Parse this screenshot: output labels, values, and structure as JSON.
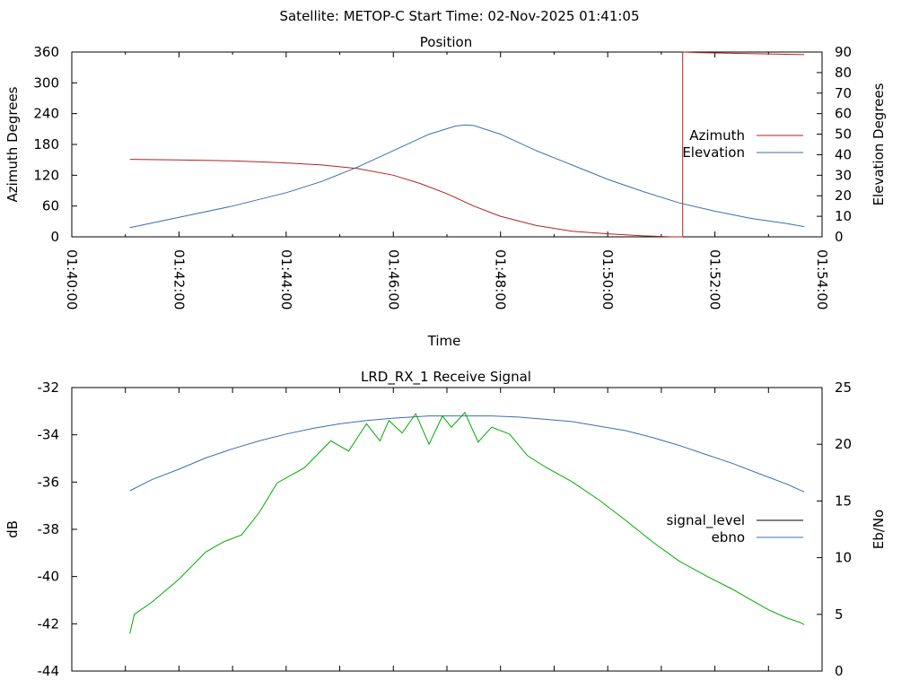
{
  "suptitle": "Satellite: METOP-C    Start Time: 02-Nov-2025 01:41:05",
  "colors": {
    "azimuth": "#b22222",
    "elevation": "#3a6fb0",
    "signal_level": "#000000",
    "ebno": "#3a6fb0",
    "signal_trace": "#00aa00"
  },
  "chart_data": [
    {
      "type": "line",
      "title": "Position",
      "xlabel": "Time",
      "ylabel": "Azimuth Degrees",
      "y2label": "Elevation Degrees",
      "xlim": [
        0,
        840
      ],
      "ylim": [
        0,
        360
      ],
      "y2lim": [
        0,
        90
      ],
      "xticks": [
        0,
        120,
        240,
        360,
        480,
        600,
        720,
        840
      ],
      "xtick_labels": [
        "01:40:00",
        "01:42:00",
        "01:44:00",
        "01:46:00",
        "01:48:00",
        "01:50:00",
        "01:52:00",
        "01:54:00"
      ],
      "yticks": [
        0,
        60,
        120,
        180,
        240,
        300,
        360
      ],
      "ytick_labels": [
        "0",
        "60",
        "120",
        "180",
        "240",
        "300",
        "360"
      ],
      "y2ticks": [
        0,
        10,
        20,
        30,
        40,
        50,
        60,
        70,
        80,
        90
      ],
      "y2tick_labels": [
        "0",
        "10",
        "20",
        "30",
        "40",
        "50",
        "60",
        "70",
        "80",
        "90"
      ],
      "legend_position": "right",
      "series": [
        {
          "name": "Azimuth",
          "axis": "y",
          "points": [
            [
              65,
              151
            ],
            [
              120,
              150
            ],
            [
              180,
              148
            ],
            [
              240,
              144
            ],
            [
              280,
              140
            ],
            [
              320,
              133
            ],
            [
              360,
              120
            ],
            [
              390,
              104
            ],
            [
              420,
              84
            ],
            [
              450,
              60
            ],
            [
              480,
              40
            ],
            [
              520,
              22
            ],
            [
              560,
              11
            ],
            [
              600,
              6
            ],
            [
              640,
              2
            ],
            [
              672,
              0
            ],
            [
              684,
              0
            ],
            [
              684,
              360
            ],
            [
              700,
              359
            ],
            [
              760,
              357
            ],
            [
              820,
              355
            ]
          ]
        },
        {
          "name": "Elevation",
          "axis": "y2",
          "points": [
            [
              65,
              4.5
            ],
            [
              120,
              9.5
            ],
            [
              180,
              15
            ],
            [
              240,
              21.5
            ],
            [
              280,
              27
            ],
            [
              320,
              34
            ],
            [
              360,
              42
            ],
            [
              400,
              50
            ],
            [
              430,
              54
            ],
            [
              440,
              54.5
            ],
            [
              450,
              54.2
            ],
            [
              480,
              50
            ],
            [
              520,
              42
            ],
            [
              560,
              35
            ],
            [
              600,
              28
            ],
            [
              640,
              22
            ],
            [
              680,
              16.5
            ],
            [
              720,
              12.5
            ],
            [
              760,
              9
            ],
            [
              800,
              6.5
            ],
            [
              820,
              5
            ]
          ]
        }
      ]
    },
    {
      "type": "line",
      "title": "LRD_RX_1 Receive Signal",
      "xlabel": "",
      "ylabel": "dB",
      "y2label": "Eb/No",
      "xlim": [
        0,
        840
      ],
      "ylim": [
        -44,
        -32
      ],
      "y2lim": [
        0,
        25
      ],
      "xticks": [
        0,
        60,
        120,
        180,
        240,
        300,
        360,
        420,
        480,
        540,
        600,
        660,
        720,
        780,
        840
      ],
      "xtick_labels": [],
      "yticks": [
        -44,
        -42,
        -40,
        -38,
        -36,
        -34,
        -32
      ],
      "ytick_labels": [
        "-44",
        "-42",
        "-40",
        "-38",
        "-36",
        "-34",
        "-32"
      ],
      "y2ticks": [
        0,
        5,
        10,
        15,
        20,
        25
      ],
      "y2tick_labels": [
        "0",
        "5",
        "10",
        "15",
        "20",
        "25"
      ],
      "legend_position": "right",
      "series": [
        {
          "name": "signal_level",
          "axis": "y",
          "points": []
        },
        {
          "name": "ebno",
          "axis": "y2",
          "points": [
            [
              65,
              15.9
            ],
            [
              90,
              16.9
            ],
            [
              120,
              17.8
            ],
            [
              150,
              18.8
            ],
            [
              180,
              19.6
            ],
            [
              210,
              20.3
            ],
            [
              240,
              20.9
            ],
            [
              270,
              21.4
            ],
            [
              300,
              21.8
            ],
            [
              330,
              22.1
            ],
            [
              360,
              22.3
            ],
            [
              400,
              22.5
            ],
            [
              440,
              22.5
            ],
            [
              470,
              22.5
            ],
            [
              500,
              22.4
            ],
            [
              530,
              22.2
            ],
            [
              560,
              22.0
            ],
            [
              590,
              21.6
            ],
            [
              620,
              21.2
            ],
            [
              650,
              20.6
            ],
            [
              680,
              19.9
            ],
            [
              710,
              19.1
            ],
            [
              740,
              18.3
            ],
            [
              770,
              17.4
            ],
            [
              800,
              16.5
            ],
            [
              820,
              15.8
            ]
          ]
        },
        {
          "name": "",
          "axis": "y2",
          "points": [
            [
              65,
              3.3
            ],
            [
              70,
              5
            ],
            [
              90,
              6.1
            ],
            [
              120,
              8.1
            ],
            [
              150,
              10.5
            ],
            [
              170,
              11.4
            ],
            [
              190,
              12
            ],
            [
              210,
              14
            ],
            [
              230,
              16.6
            ],
            [
              260,
              17.9
            ],
            [
              290,
              20.3
            ],
            [
              310,
              19.4
            ],
            [
              330,
              21.8
            ],
            [
              345,
              20.3
            ],
            [
              355,
              22.1
            ],
            [
              370,
              21
            ],
            [
              385,
              22.7
            ],
            [
              400,
              20
            ],
            [
              415,
              22.5
            ],
            [
              425,
              21.5
            ],
            [
              440,
              22.8
            ],
            [
              455,
              20.2
            ],
            [
              470,
              21.5
            ],
            [
              490,
              20.9
            ],
            [
              510,
              19
            ],
            [
              530,
              18
            ],
            [
              560,
              16.7
            ],
            [
              590,
              15.1
            ],
            [
              620,
              13.3
            ],
            [
              650,
              11.4
            ],
            [
              680,
              9.7
            ],
            [
              710,
              8.4
            ],
            [
              740,
              7.2
            ],
            [
              760,
              6.3
            ],
            [
              780,
              5.4
            ],
            [
              800,
              4.7
            ],
            [
              815,
              4.3
            ],
            [
              820,
              4.1
            ]
          ]
        }
      ]
    }
  ]
}
